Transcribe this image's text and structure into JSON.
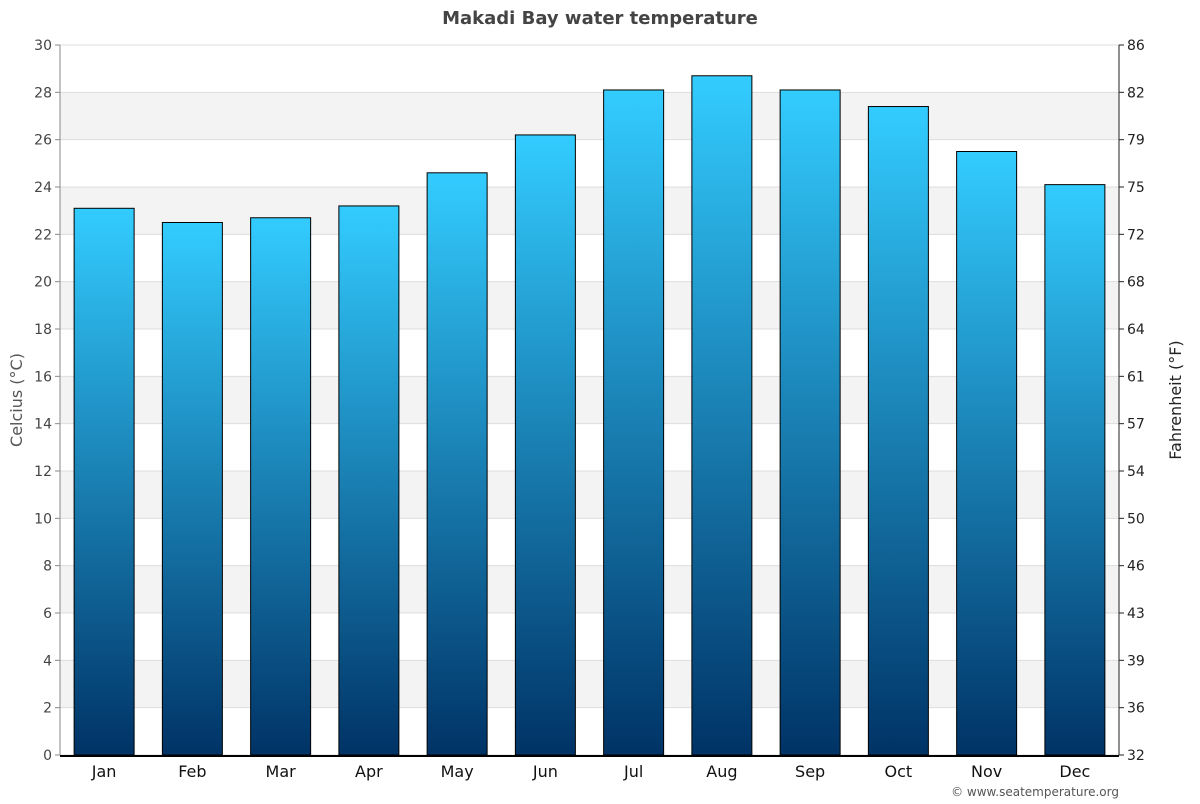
{
  "chart_data": {
    "type": "bar",
    "title": "Makadi Bay water temperature",
    "categories": [
      "Jan",
      "Feb",
      "Mar",
      "Apr",
      "May",
      "Jun",
      "Jul",
      "Aug",
      "Sep",
      "Oct",
      "Nov",
      "Dec"
    ],
    "values": [
      23.1,
      22.5,
      22.7,
      23.2,
      24.6,
      26.2,
      28.1,
      28.7,
      28.1,
      27.4,
      25.5,
      24.1
    ],
    "ylabel": "Celcius (°C)",
    "y2label": "Fahrenheit (°F)",
    "ylim": [
      0,
      30
    ],
    "yticks": [
      0,
      2,
      4,
      6,
      8,
      10,
      12,
      14,
      16,
      18,
      20,
      22,
      24,
      26,
      28,
      30
    ],
    "y2ticks": [
      "32",
      "36",
      "39",
      "43",
      "46",
      "50",
      "54",
      "57",
      "61",
      "64",
      "68",
      "72",
      "75",
      "79",
      "82",
      "86"
    ],
    "grid": true,
    "colors": {
      "bar_top": "#33ccff",
      "bar_bottom": "#003366",
      "band": "#f3f3f3"
    }
  },
  "credit": "© www.seatemperature.org"
}
